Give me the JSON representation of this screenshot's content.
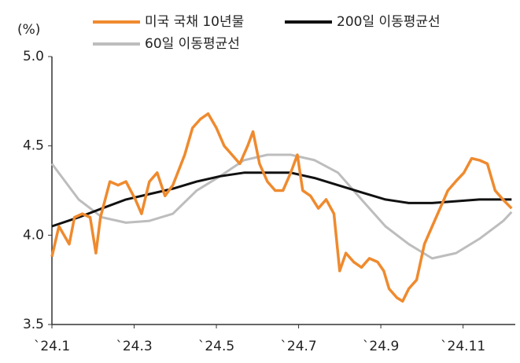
{
  "chart_data": {
    "type": "line",
    "y_label": "(%)",
    "xlim": [
      1,
      12.27
    ],
    "xticks": [
      {
        "value": 1,
        "label": "`24.1"
      },
      {
        "value": 3,
        "label": "`24.3"
      },
      {
        "value": 5,
        "label": "`24.5"
      },
      {
        "value": 7,
        "label": "`24.7"
      },
      {
        "value": 9,
        "label": "`24.9"
      },
      {
        "value": 11,
        "label": "`24.11"
      }
    ],
    "ylim": [
      3.5,
      5.0
    ],
    "yticks": [
      {
        "value": 3.5,
        "label": "3.5"
      },
      {
        "value": 4.0,
        "label": "4.0"
      },
      {
        "value": 4.5,
        "label": "4.5"
      },
      {
        "value": 5.0,
        "label": "5.0"
      }
    ],
    "series": [
      {
        "name": "미국 국채 10년물",
        "color": "#ef8a2e",
        "x": [
          1.0,
          1.17,
          1.42,
          1.55,
          1.74,
          1.93,
          2.07,
          2.18,
          2.41,
          2.61,
          2.8,
          3.03,
          3.18,
          3.37,
          3.56,
          3.75,
          3.94,
          4.23,
          4.42,
          4.61,
          4.8,
          5.0,
          5.19,
          5.38,
          5.57,
          5.76,
          5.89,
          6.05,
          6.24,
          6.43,
          6.62,
          6.81,
          6.97,
          7.1,
          7.29,
          7.48,
          7.67,
          7.86,
          8.0,
          8.15,
          8.34,
          8.53,
          8.72,
          8.92,
          9.07,
          9.2,
          9.39,
          9.53,
          9.68,
          9.87,
          10.06,
          10.25,
          10.44,
          10.63,
          10.82,
          11.02,
          11.21,
          11.4,
          11.59,
          11.78,
          11.97,
          12.18
        ],
        "values": [
          3.88,
          4.05,
          3.95,
          4.1,
          4.12,
          4.1,
          3.9,
          4.1,
          4.3,
          4.28,
          4.3,
          4.2,
          4.12,
          4.3,
          4.35,
          4.22,
          4.28,
          4.45,
          4.6,
          4.65,
          4.68,
          4.6,
          4.5,
          4.45,
          4.4,
          4.5,
          4.58,
          4.4,
          4.3,
          4.25,
          4.25,
          4.35,
          4.45,
          4.25,
          4.22,
          4.15,
          4.2,
          4.12,
          3.8,
          3.9,
          3.85,
          3.82,
          3.87,
          3.85,
          3.8,
          3.7,
          3.65,
          3.63,
          3.7,
          3.75,
          3.95,
          4.05,
          4.15,
          4.25,
          4.3,
          4.35,
          4.43,
          4.42,
          4.4,
          4.25,
          4.2,
          4.15
        ]
      },
      {
        "name": "200일 이동평균선",
        "color": "#111111",
        "x": [
          1.0,
          1.65,
          2.22,
          2.8,
          3.37,
          3.94,
          4.52,
          5.09,
          5.67,
          6.24,
          6.81,
          7.39,
          7.96,
          8.53,
          9.11,
          9.68,
          10.25,
          10.83,
          11.4,
          11.98,
          12.18
        ],
        "values": [
          4.05,
          4.1,
          4.15,
          4.2,
          4.23,
          4.26,
          4.3,
          4.33,
          4.35,
          4.35,
          4.35,
          4.32,
          4.28,
          4.24,
          4.2,
          4.18,
          4.18,
          4.19,
          4.2,
          4.2,
          4.2
        ]
      },
      {
        "name": "60일 이동평균선",
        "color": "#bdbdbd",
        "x": [
          1.0,
          1.65,
          2.22,
          2.8,
          3.37,
          3.94,
          4.52,
          5.09,
          5.67,
          6.24,
          6.81,
          7.39,
          7.96,
          8.53,
          9.11,
          9.68,
          10.25,
          10.83,
          11.4,
          11.98,
          12.18
        ],
        "values": [
          4.4,
          4.2,
          4.1,
          4.07,
          4.08,
          4.12,
          4.25,
          4.33,
          4.42,
          4.45,
          4.45,
          4.42,
          4.35,
          4.2,
          4.05,
          3.95,
          3.87,
          3.9,
          3.98,
          4.08,
          4.13
        ]
      }
    ]
  }
}
